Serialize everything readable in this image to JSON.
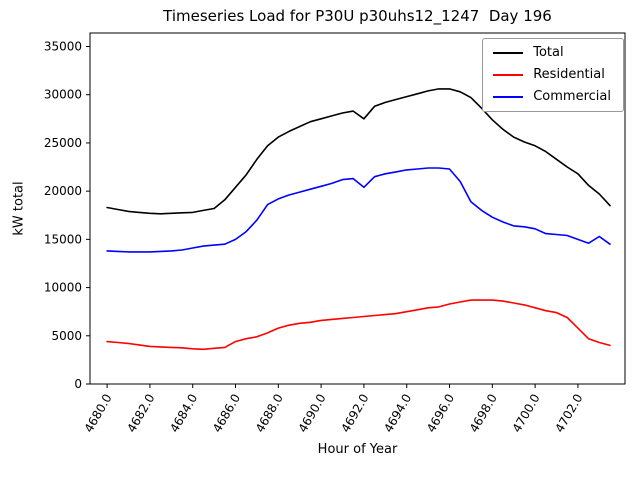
{
  "chart_data": {
    "type": "line",
    "title": "Timeseries Load for P30U p30uhs12_1247  Day 196",
    "xlabel": "Hour of Year",
    "ylabel": "kW total",
    "grid": false,
    "legend_position": "upper right",
    "xlim": [
      4679.2,
      4704.2
    ],
    "ylim": [
      0,
      36400
    ],
    "xticks": [
      4680,
      4682,
      4684,
      4686,
      4688,
      4690,
      4692,
      4694,
      4696,
      4698,
      4700,
      4702
    ],
    "xtick_labels": [
      "4680.0",
      "4682.0",
      "4684.0",
      "4686.0",
      "4688.0",
      "4690.0",
      "4692.0",
      "4694.0",
      "4696.0",
      "4698.0",
      "4700.0",
      "4702.0"
    ],
    "yticks": [
      0,
      5000,
      10000,
      15000,
      20000,
      25000,
      30000,
      35000
    ],
    "ytick_labels": [
      "0",
      "5000",
      "10000",
      "15000",
      "20000",
      "25000",
      "30000",
      "35000"
    ],
    "x": [
      4680.0,
      4680.5,
      4681.0,
      4681.5,
      4682.0,
      4682.5,
      4683.0,
      4683.5,
      4684.0,
      4684.5,
      4685.0,
      4685.5,
      4686.0,
      4686.5,
      4687.0,
      4687.5,
      4688.0,
      4688.5,
      4689.0,
      4689.5,
      4690.0,
      4690.5,
      4691.0,
      4691.5,
      4692.0,
      4692.5,
      4693.0,
      4693.5,
      4694.0,
      4694.5,
      4695.0,
      4695.5,
      4696.0,
      4696.5,
      4697.0,
      4697.5,
      4698.0,
      4698.5,
      4699.0,
      4699.5,
      4700.0,
      4700.5,
      4701.0,
      4701.5,
      4702.0,
      4702.5,
      4703.0,
      4703.5
    ],
    "series": [
      {
        "name": "Total",
        "color": "#000000",
        "values": [
          18300,
          18100,
          17900,
          17800,
          17700,
          17650,
          17700,
          17750,
          17800,
          18000,
          18200,
          19100,
          20400,
          21700,
          23300,
          24700,
          25600,
          26200,
          26700,
          27200,
          27500,
          27800,
          28100,
          28300,
          27500,
          28800,
          29200,
          29500,
          29800,
          30100,
          30400,
          30600,
          30600,
          30300,
          29700,
          28600,
          27400,
          26400,
          25600,
          25100,
          24700,
          24100,
          23300,
          22500,
          21800,
          20600,
          19700,
          18500
        ]
      },
      {
        "name": "Residential",
        "color": "#ff0000",
        "values": [
          4400,
          4300,
          4200,
          4050,
          3900,
          3850,
          3800,
          3750,
          3650,
          3600,
          3700,
          3800,
          4400,
          4700,
          4900,
          5300,
          5800,
          6100,
          6300,
          6400,
          6600,
          6700,
          6800,
          6900,
          7000,
          7100,
          7200,
          7300,
          7500,
          7700,
          7900,
          8000,
          8300,
          8500,
          8700,
          8700,
          8700,
          8600,
          8400,
          8200,
          7900,
          7600,
          7400,
          6900,
          5800,
          4700,
          4300,
          4000
        ]
      },
      {
        "name": "Commercial",
        "color": "#0000ff",
        "values": [
          13800,
          13750,
          13700,
          13700,
          13700,
          13750,
          13800,
          13900,
          14100,
          14300,
          14400,
          14500,
          15000,
          15800,
          17000,
          18600,
          19200,
          19600,
          19900,
          20200,
          20500,
          20800,
          21200,
          21300,
          20400,
          21500,
          21800,
          22000,
          22200,
          22300,
          22400,
          22400,
          22300,
          21000,
          18900,
          18000,
          17300,
          16800,
          16400,
          16300,
          16100,
          15600,
          15500,
          15400,
          15000,
          14600,
          15300,
          14500
        ]
      }
    ]
  }
}
